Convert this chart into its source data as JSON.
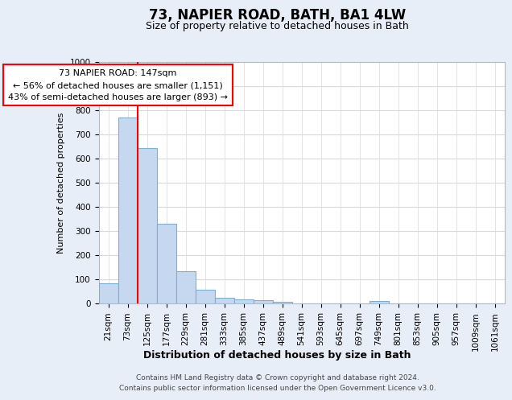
{
  "title1": "73, NAPIER ROAD, BATH, BA1 4LW",
  "title2": "Size of property relative to detached houses in Bath",
  "xlabel": "Distribution of detached houses by size in Bath",
  "ylabel": "Number of detached properties",
  "categories": [
    "21sqm",
    "73sqm",
    "125sqm",
    "177sqm",
    "229sqm",
    "281sqm",
    "333sqm",
    "385sqm",
    "437sqm",
    "489sqm",
    "541sqm",
    "593sqm",
    "645sqm",
    "697sqm",
    "749sqm",
    "801sqm",
    "853sqm",
    "905sqm",
    "957sqm",
    "1009sqm",
    "1061sqm"
  ],
  "values": [
    83,
    770,
    645,
    330,
    133,
    58,
    23,
    18,
    14,
    8,
    0,
    0,
    0,
    0,
    10,
    0,
    0,
    0,
    0,
    0,
    0
  ],
  "bar_color": "#c5d8f0",
  "bar_edge_color": "#7bafd4",
  "annotation_text_lines": [
    "73 NAPIER ROAD: 147sqm",
    "← 56% of detached houses are smaller (1,151)",
    "43% of semi-detached houses are larger (893) →"
  ],
  "annotation_box_color": "white",
  "annotation_box_edge": "red",
  "vline_color": "red",
  "vline_x": 2.0,
  "ylim": [
    0,
    1000
  ],
  "yticks": [
    0,
    100,
    200,
    300,
    400,
    500,
    600,
    700,
    800,
    900,
    1000
  ],
  "footer1": "Contains HM Land Registry data © Crown copyright and database right 2024.",
  "footer2": "Contains public sector information licensed under the Open Government Licence v3.0.",
  "background_color": "#e8eef8",
  "plot_background": "#ffffff",
  "grid_color": "#d0dae8",
  "title1_fontsize": 12,
  "title2_fontsize": 9,
  "xlabel_fontsize": 9,
  "ylabel_fontsize": 8,
  "tick_fontsize": 7.5,
  "annotation_fontsize": 8,
  "footer_fontsize": 6.5
}
